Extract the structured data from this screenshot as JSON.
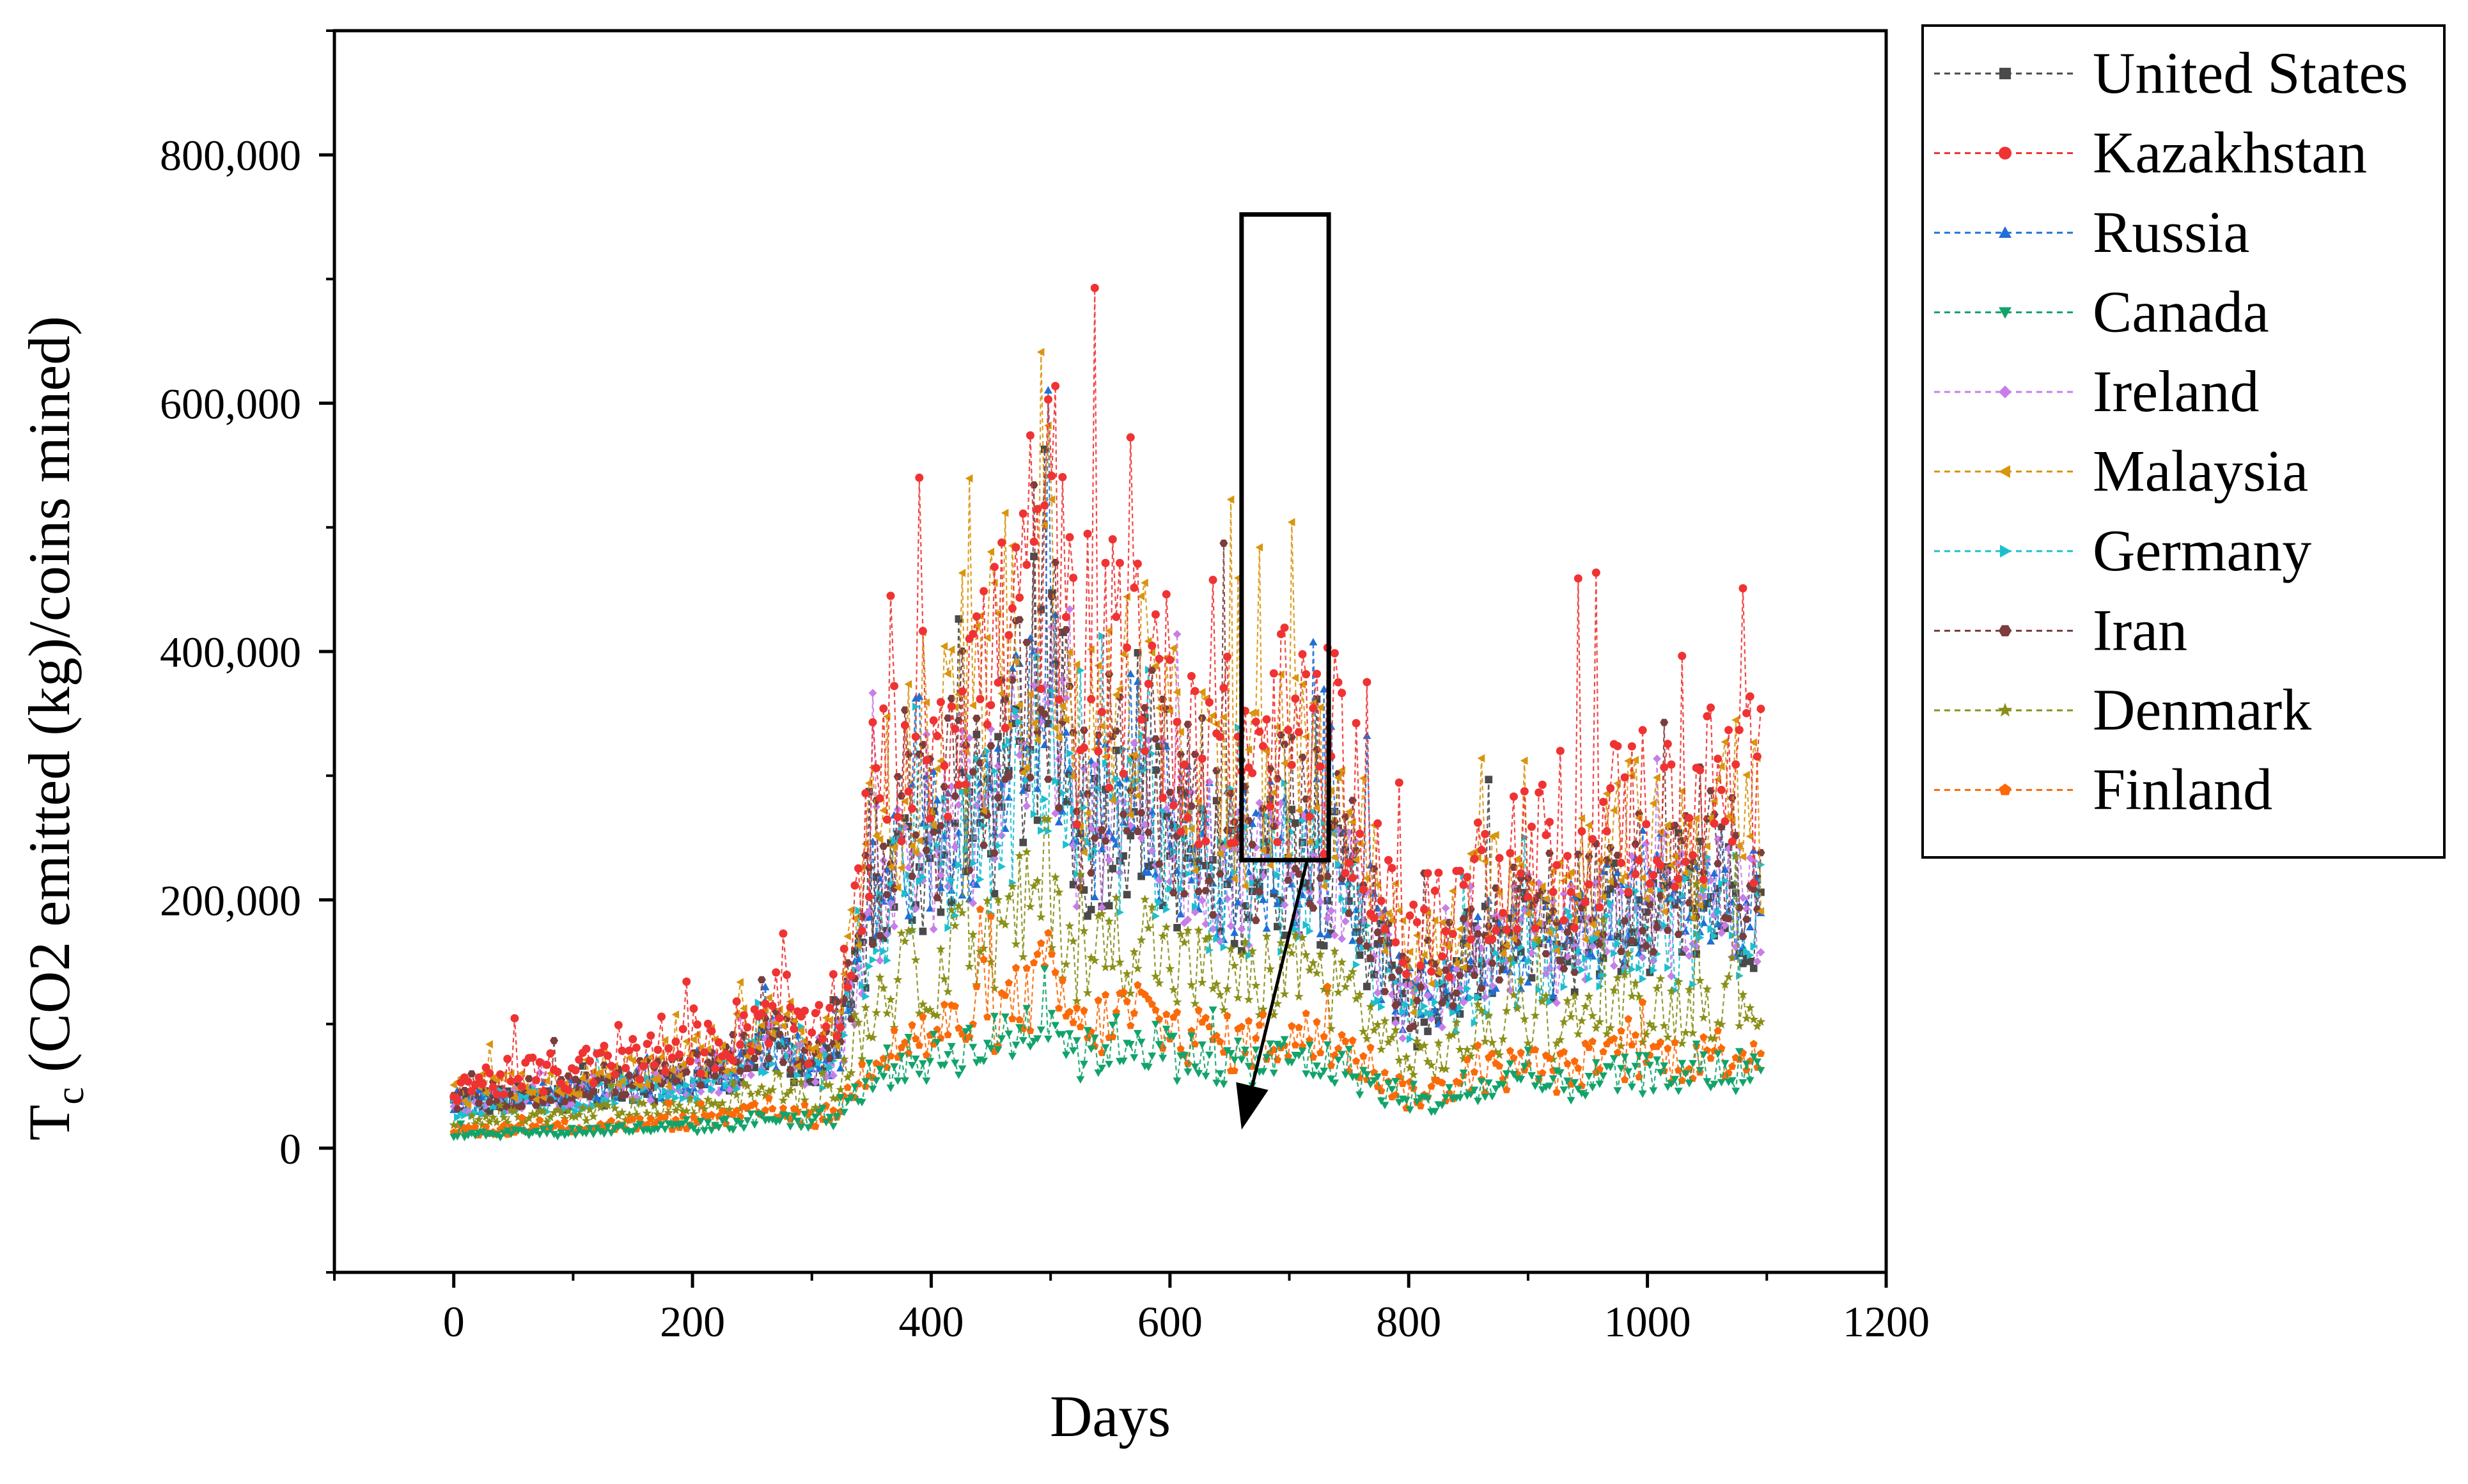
{
  "chart_data": {
    "type": "line",
    "title": "",
    "xlabel": "Days",
    "ylabel_main": "T",
    "ylabel_sub": "c",
    "ylabel_rest": " (CO2 emitted (kg)/coins mined)",
    "xlim": [
      -100,
      1200
    ],
    "ylim": [
      -100000,
      900000
    ],
    "x_ticks": [
      0,
      200,
      400,
      600,
      800,
      1000,
      1200
    ],
    "x_tick_labels": [
      "0",
      "200",
      "400",
      "600",
      "800",
      "1000",
      "1200"
    ],
    "y_ticks": [
      0,
      200000,
      400000,
      600000,
      800000
    ],
    "y_tick_labels": [
      "0",
      "200,000",
      "400,000",
      "600,000",
      "800,000"
    ],
    "legend_position": "right-top, outside plot",
    "x_days": [
      0,
      25,
      50,
      75,
      100,
      125,
      150,
      175,
      200,
      225,
      250,
      275,
      300,
      325,
      350,
      375,
      400,
      425,
      450,
      475,
      500,
      525,
      550,
      575,
      600,
      625,
      650,
      675,
      700,
      725,
      750,
      775,
      800,
      825,
      850,
      875,
      900,
      925,
      950,
      975,
      1000,
      1025,
      1050,
      1075,
      1095
    ],
    "base_profile": [
      40000,
      42000,
      44000,
      46000,
      48000,
      52000,
      56000,
      58000,
      60000,
      68000,
      80000,
      92000,
      62000,
      95000,
      210000,
      250000,
      260000,
      290000,
      300000,
      340000,
      400000,
      260000,
      300000,
      320000,
      270000,
      260000,
      240000,
      250000,
      260000,
      250000,
      230000,
      175000,
      120000,
      135000,
      160000,
      180000,
      190000,
      175000,
      195000,
      205000,
      215000,
      205000,
      220000,
      225000,
      220000
    ],
    "series": [
      {
        "name": "United States",
        "scale": 0.9,
        "color": "#4a4a4a",
        "marker": "square"
      },
      {
        "name": "Kazakhstan",
        "scale": 1.3,
        "color": "#ef3333",
        "marker": "circle"
      },
      {
        "name": "Russia",
        "scale": 0.95,
        "color": "#1f6fd6",
        "marker": "triangle-up"
      },
      {
        "name": "Canada",
        "scale": 0.28,
        "color": "#12a36b",
        "marker": "triangle-down"
      },
      {
        "name": "Ireland",
        "scale": 0.92,
        "color": "#c77ee8",
        "marker": "diamond"
      },
      {
        "name": "Malaysia",
        "scale": 1.18,
        "color": "#d9950e",
        "marker": "triangle-left"
      },
      {
        "name": "Germany",
        "scale": 0.85,
        "color": "#1cbfcf",
        "marker": "triangle-right"
      },
      {
        "name": "Iran",
        "scale": 1.02,
        "color": "#7b3d3d",
        "marker": "hexagon"
      },
      {
        "name": "Denmark",
        "scale": 0.55,
        "color": "#8a8f18",
        "marker": "star"
      },
      {
        "name": "Finland",
        "scale": 0.35,
        "color": "#fb6a08",
        "marker": "pentagon"
      }
    ],
    "annotation": {
      "type": "box-with-arrow",
      "box_x_range": [
        660,
        733
      ],
      "box_y_range": [
        232000,
        752000
      ],
      "arrow_from": [
        715,
        232000
      ],
      "arrow_to": [
        660,
        15000
      ]
    }
  }
}
